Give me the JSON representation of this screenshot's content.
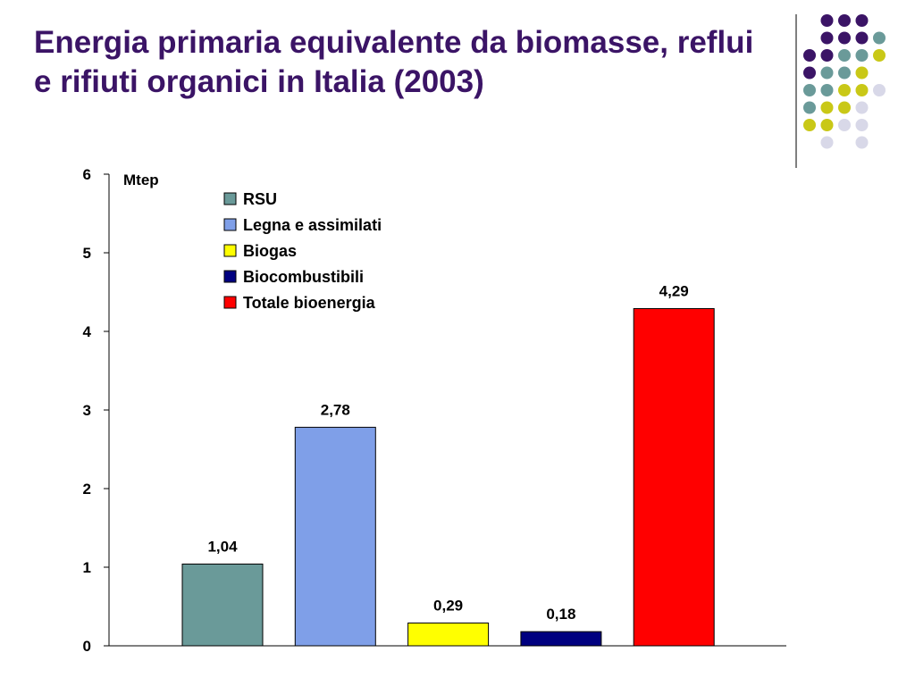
{
  "slide": {
    "title": "Energia primaria equivalente da biomasse, reflui e rifiuti organici in Italia (2003)"
  },
  "decoration": {
    "dots": [
      [
        null,
        "#3b1466",
        "#3b1466",
        "#3b1466",
        null
      ],
      [
        null,
        "#3b1466",
        "#3b1466",
        "#3b1466",
        "#6a9a99"
      ],
      [
        "#3b1466",
        "#3b1466",
        "#6a9a99",
        "#6a9a99",
        "#c9c817"
      ],
      [
        "#3b1466",
        "#6a9a99",
        "#6a9a99",
        "#c9c817",
        null
      ],
      [
        "#6a9a99",
        "#6a9a99",
        "#c9c817",
        "#c9c817",
        "#d8d8e8"
      ],
      [
        "#6a9a99",
        "#c9c817",
        "#c9c817",
        "#d8d8e8",
        null
      ],
      [
        "#c9c817",
        "#c9c817",
        "#d8d8e8",
        "#d8d8e8",
        null
      ],
      [
        null,
        "#d8d8e8",
        null,
        "#d8d8e8",
        null
      ]
    ]
  },
  "chart_data": {
    "type": "bar",
    "title": "",
    "unit_label": "Mtep",
    "ylim": [
      0,
      6
    ],
    "yticks": [
      0,
      1,
      2,
      3,
      4,
      5,
      6
    ],
    "legend_position": "top-center",
    "series": [
      {
        "name": "RSU",
        "value": 1.04,
        "label": "1,04",
        "color": "#6a9a99"
      },
      {
        "name": "Legna e assimilati",
        "value": 2.78,
        "label": "2,78",
        "color": "#7f9fe8"
      },
      {
        "name": "Biogas",
        "value": 0.29,
        "label": "0,29",
        "color": "#ffff00"
      },
      {
        "name": "Biocombustibili",
        "value": 0.18,
        "label": "0,18",
        "color": "#000080"
      },
      {
        "name": "Totale bioenergia",
        "value": 4.29,
        "label": "4,29",
        "color": "#ff0000"
      }
    ]
  }
}
